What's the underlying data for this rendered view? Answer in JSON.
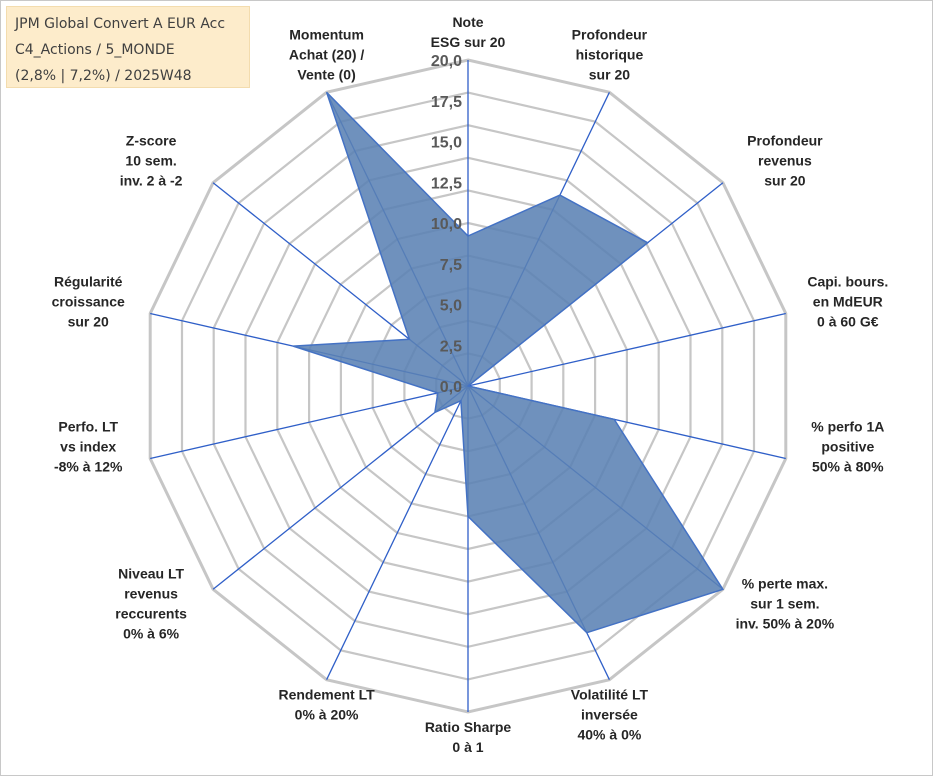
{
  "title_box": {
    "line1": "JPM Global Convert A EUR Acc",
    "line2": "C4_Actions / 5_MONDE",
    "line3": "(2,8% | 7,2%) / 2025W48"
  },
  "colors": {
    "fill": "#5b82b4",
    "stroke": "#4472c4",
    "grid": "#c6c6c6",
    "spoke": "#2f5fc8"
  },
  "chart_data": {
    "type": "radar",
    "title": "JPM Global Convert A EUR Acc",
    "rmin": 0,
    "rmax": 20,
    "rings": 10,
    "tick_labels": [
      "0,0",
      "2,5",
      "5,0",
      "7,5",
      "10,0",
      "12,5",
      "15,0",
      "17,5",
      "20,0"
    ],
    "axes": [
      {
        "label": [
          "Note",
          "ESG sur 20"
        ],
        "value": 9.2
      },
      {
        "label": [
          "Profondeur",
          "historique",
          "sur 20"
        ],
        "value": 13.0
      },
      {
        "label": [
          "Profondeur",
          "revenus",
          "sur 20"
        ],
        "value": 14.1
      },
      {
        "label": [
          "Capi. bours.",
          "en MdEUR",
          "0 à 60 G€"
        ],
        "value": 0.0
      },
      {
        "label": [
          "% perfo 1A",
          "positive",
          "50% à 80%"
        ],
        "value": 9.2
      },
      {
        "label": [
          "% perte max.",
          "sur 1 sem.",
          "inv. 50% à 20%"
        ],
        "value": 20.0
      },
      {
        "label": [
          "Volatilité LT",
          "inversée",
          "40% à 0%"
        ],
        "value": 16.8
      },
      {
        "label": [
          "Ratio Sharpe",
          "0 à 1"
        ],
        "value": 8.0
      },
      {
        "label": [
          "Rendement LT",
          "0% à 20%"
        ],
        "value": 1.0
      },
      {
        "label": [
          "Niveau LT",
          "revenus",
          "reccurents",
          "0% à 6%"
        ],
        "value": 2.6
      },
      {
        "label": [
          "Perfo. LT",
          "vs index",
          "-8% à 12%"
        ],
        "value": 1.9
      },
      {
        "label": [
          "Régularité",
          "croissance",
          "sur 20"
        ],
        "value": 11.0
      },
      {
        "label": [
          "Z-score",
          "10 sem.",
          "inv. 2 à -2"
        ],
        "value": 4.6
      },
      {
        "label": [
          "Momentum",
          "Achat (20) /",
          "Vente (0)"
        ],
        "value": 20.0
      }
    ]
  }
}
